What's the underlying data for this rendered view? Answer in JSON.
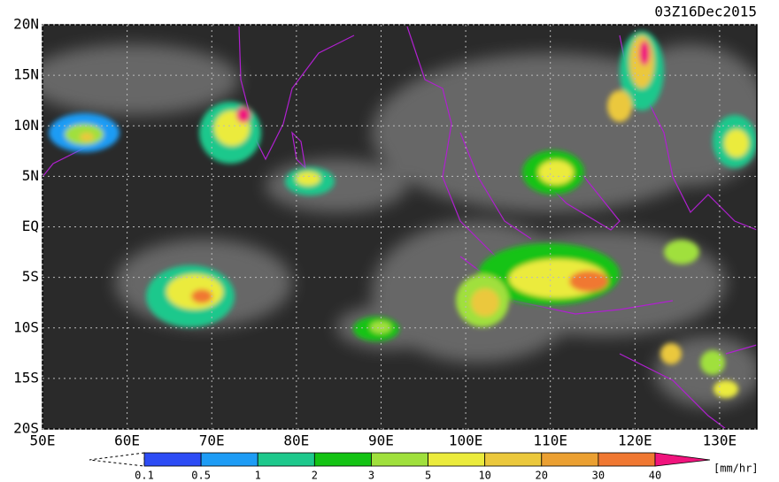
{
  "map": {
    "title": "03Z16Dec2015",
    "xlim": [
      50,
      134.4
    ],
    "ylim": [
      -20,
      20
    ],
    "xticks": [
      {
        "value": 50,
        "label": "50E"
      },
      {
        "value": 60,
        "label": "60E"
      },
      {
        "value": 70,
        "label": "70E"
      },
      {
        "value": 80,
        "label": "80E"
      },
      {
        "value": 90,
        "label": "90E"
      },
      {
        "value": 100,
        "label": "100E"
      },
      {
        "value": 110,
        "label": "110E"
      },
      {
        "value": 120,
        "label": "120E"
      },
      {
        "value": 130,
        "label": "130E"
      }
    ],
    "yticks": [
      {
        "value": 20,
        "label": "20N"
      },
      {
        "value": 15,
        "label": "15N"
      },
      {
        "value": 10,
        "label": "10N"
      },
      {
        "value": 5,
        "label": "5N"
      },
      {
        "value": 0,
        "label": "EQ"
      },
      {
        "value": -5,
        "label": "5S"
      },
      {
        "value": -10,
        "label": "10S"
      },
      {
        "value": -15,
        "label": "15S"
      },
      {
        "value": -20,
        "label": "20S"
      }
    ],
    "colorbar": {
      "levels": [
        0.1,
        0.5,
        1,
        2,
        3,
        5,
        10,
        20,
        30,
        40
      ],
      "colors": [
        "#2d4cf5",
        "#1e9cf5",
        "#1ec88c",
        "#14c314",
        "#a0e03c",
        "#ebeb3c",
        "#ebc83c",
        "#eba032",
        "#f07832"
      ],
      "over_color": "#f0147d",
      "unit": "[mm/hr]"
    }
  }
}
